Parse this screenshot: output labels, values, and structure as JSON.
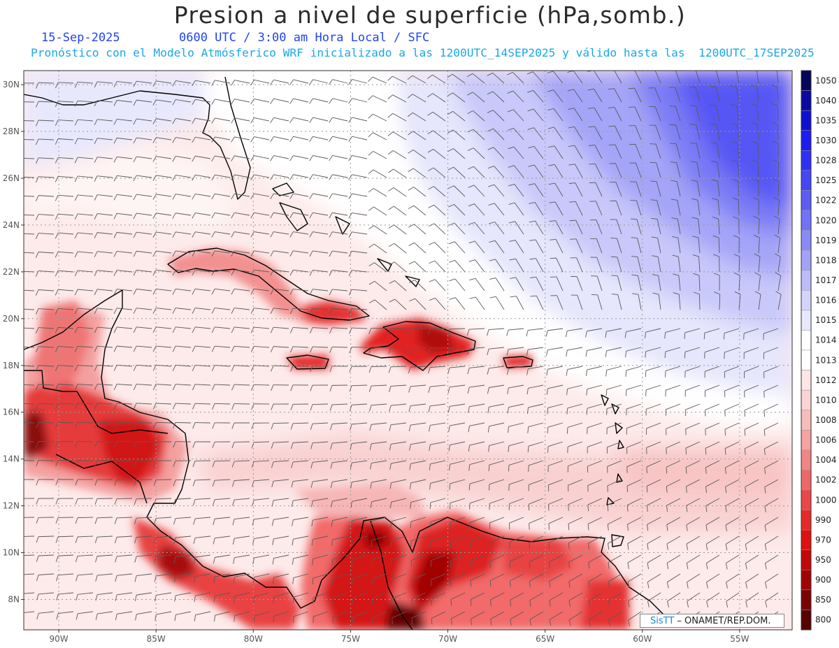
{
  "header": {
    "title": "Presion a nivel de superficie (hPa,somb.)",
    "date": "15-Sep-2025",
    "time_info": "0600 UTC / 3:00 am Hora Local / SFC",
    "forecast_info": "Pronóstico con el Modelo Atmósferico WRF inicializado a las 1200UTC_14SEP2025 y válido hasta las  1200UTC_17SEP2025"
  },
  "map": {
    "lat_labels": [
      "30N",
      "28N",
      "26N",
      "24N",
      "22N",
      "20N",
      "18N",
      "16N",
      "14N",
      "12N",
      "10N",
      "8N"
    ],
    "lon_labels": [
      "90W",
      "85W",
      "80W",
      "75W",
      "70W",
      "65W",
      "60W",
      "55W"
    ],
    "lat_values": [
      30,
      28,
      26,
      24,
      22,
      20,
      18,
      16,
      14,
      12,
      10,
      8
    ],
    "lon_values": [
      -90,
      -85,
      -80,
      -75,
      -70,
      -65,
      -60,
      -55
    ],
    "extent": {
      "lon_min": -91.8,
      "lon_max": -52.3,
      "lat_min": 6.7,
      "lat_max": 30.6
    }
  },
  "colorbar": {
    "levels": [
      "1050",
      "1040",
      "1035",
      "1030",
      "1028",
      "1025",
      "1022",
      "1020",
      "1019",
      "1018",
      "1017",
      "1016",
      "1015",
      "1014",
      "1013",
      "1012",
      "1010",
      "1008",
      "1006",
      "1004",
      "1002",
      "1000",
      "990",
      "970",
      "950",
      "900",
      "850",
      "800"
    ],
    "colors": [
      "#05055a",
      "#0a0a9e",
      "#1010d0",
      "#1d1df0",
      "#3030f5",
      "#4646f5",
      "#5c5cf5",
      "#7272f6",
      "#8a8af7",
      "#a2a2f8",
      "#bcbcfa",
      "#d4d4fb",
      "#e8e8fd",
      "#ffffff",
      "#ffffff",
      "#fde6e6",
      "#fad4d4",
      "#f7bcbc",
      "#f4a2a2",
      "#f08585",
      "#ec6868",
      "#e84848",
      "#e42a2a",
      "#dd1111",
      "#c00808",
      "#a00404",
      "#7a0202",
      "#580101"
    ]
  },
  "credit": {
    "brand": "SisTT",
    "text": " – ONAMET/REP.DOM."
  },
  "colors": {
    "title": "#2a2a2a",
    "date": "#2244ee",
    "forecast": "#1aa7e8",
    "coast": "#000000",
    "wind_barb": "#555555"
  }
}
